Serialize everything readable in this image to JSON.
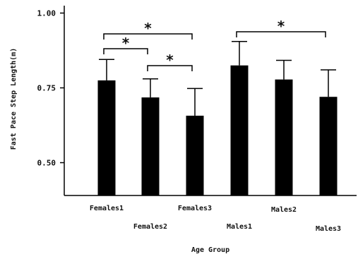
{
  "chart_data": {
    "type": "bar",
    "xlabel": "Age Group",
    "ylabel": "Fast Pace Step Length(m)",
    "ylim": [
      0.4,
      1.05
    ],
    "yticks": [
      {
        "value": 0.5,
        "label": "0.50"
      },
      {
        "value": 0.75,
        "label": "0.75"
      },
      {
        "value": 1.0,
        "label": "1.00"
      }
    ],
    "categories": [
      "Females1",
      "Females2",
      "Females3",
      "Males1",
      "Males2",
      "Males3"
    ],
    "values": [
      0.775,
      0.718,
      0.657,
      0.825,
      0.778,
      0.72
    ],
    "error_upper": [
      0.845,
      0.78,
      0.748,
      0.905,
      0.842,
      0.81
    ],
    "significance": [
      {
        "from": "Females1",
        "to": "Females3",
        "label": "*"
      },
      {
        "from": "Females1",
        "to": "Females2",
        "label": "*"
      },
      {
        "from": "Females2",
        "to": "Females3",
        "label": "*"
      },
      {
        "from": "Males1",
        "to": "Males3",
        "label": "*"
      }
    ],
    "grid": false,
    "legend": "none",
    "bar_color": "#000000"
  }
}
